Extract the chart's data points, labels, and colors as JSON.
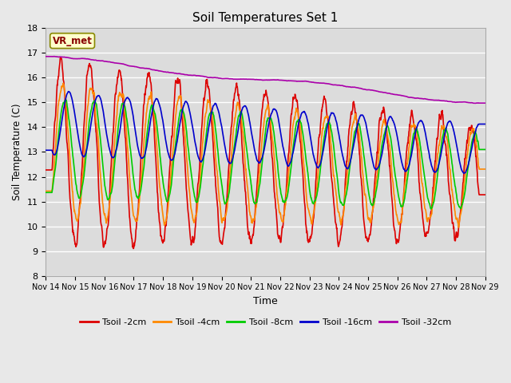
{
  "title": "Soil Temperatures Set 1",
  "xlabel": "Time",
  "ylabel": "Soil Temperature (C)",
  "ylim": [
    8.0,
    18.0
  ],
  "yticks": [
    8.0,
    9.0,
    10.0,
    11.0,
    12.0,
    13.0,
    14.0,
    15.0,
    16.0,
    17.0,
    18.0
  ],
  "bg_color": "#e8e8e8",
  "plot_bg_color": "#dcdcdc",
  "grid_color": "white",
  "legend_label": "VR_met",
  "series_colors": {
    "Tsoil -2cm": "#dd0000",
    "Tsoil -4cm": "#ff8800",
    "Tsoil -8cm": "#00cc00",
    "Tsoil -16cm": "#0000cc",
    "Tsoil -32cm": "#aa00aa"
  },
  "xtick_labels": [
    "Nov 14",
    "Nov 15",
    "Nov 16",
    "Nov 17",
    "Nov 18",
    "Nov 19",
    "Nov 20",
    "Nov 21",
    "Nov 22",
    "Nov 23",
    "Nov 24",
    "Nov 25",
    "Nov 26",
    "Nov 27",
    "Nov 28",
    "Nov 29"
  ],
  "n_points": 1440,
  "days": 15
}
